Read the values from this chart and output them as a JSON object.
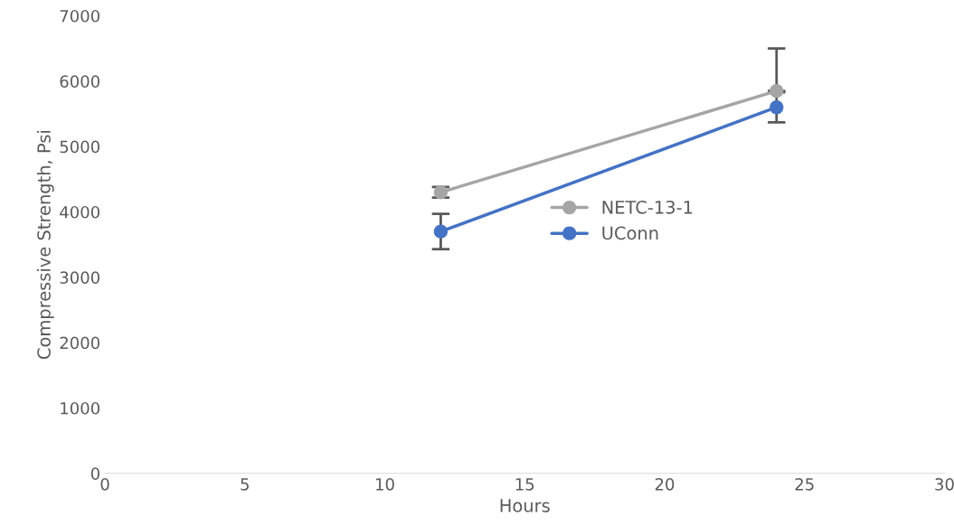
{
  "chart_data": {
    "type": "line",
    "xlabel": "Hours",
    "ylabel": "Compressive Strength, Psi",
    "x": [
      12,
      24
    ],
    "series": [
      {
        "name": "NETC-13-1",
        "color": "#a5a5a5",
        "values": [
          4300,
          5850
        ],
        "errors": [
          80,
          [
            5850,
            6500
          ]
        ]
      },
      {
        "name": "UConn",
        "color": "#4472c4",
        "values": [
          3700,
          5600
        ],
        "errors": [
          270,
          230
        ]
      }
    ],
    "xlim": [
      0,
      30
    ],
    "xticks": [
      0,
      5,
      10,
      15,
      20,
      25,
      30
    ],
    "ylim": [
      0,
      7000
    ],
    "yticks": [
      0,
      1000,
      2000,
      3000,
      4000,
      5000,
      6000,
      7000
    ],
    "grid": false,
    "legend": "right",
    "marker": "circle",
    "line_style": "solid"
  }
}
